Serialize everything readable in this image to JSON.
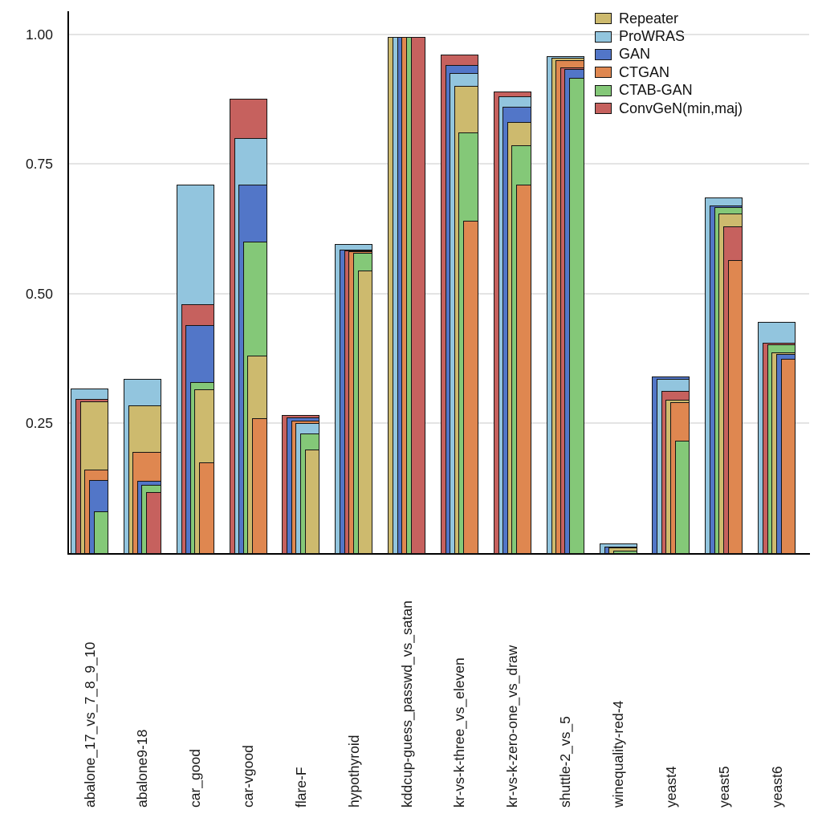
{
  "chart_data": {
    "type": "bar",
    "variant": "overlapping-nested-bars",
    "title": "",
    "xlabel": "",
    "ylabel": "",
    "ylim": [
      0,
      1.04
    ],
    "grid": true,
    "legend_position": "top-right",
    "yticks": [
      {
        "value": 0.25,
        "label": "0.25"
      },
      {
        "value": 0.5,
        "label": "0.50"
      },
      {
        "value": 0.75,
        "label": "0.75"
      },
      {
        "value": 1.0,
        "label": "1.00"
      }
    ],
    "categories": [
      "abalone_17_vs_7_8_9_10",
      "abalone9-18",
      "car_good",
      "car-vgood",
      "flare-F",
      "hypothyroid",
      "kddcup-guess_passwd_vs_satan",
      "kr-vs-k-three_vs_eleven",
      "kr-vs-k-zero-one_vs_draw",
      "shuttle-2_vs_5",
      "winequality-red-4",
      "yeast4",
      "yeast5",
      "yeast6"
    ],
    "series": [
      {
        "name": "Repeater",
        "color": "#cdba6e",
        "values": [
          0.293,
          0.285,
          0.315,
          0.38,
          0.2,
          0.545,
          0.995,
          0.9,
          0.83,
          0.954,
          0.011,
          0.295,
          0.655,
          0.386
        ]
      },
      {
        "name": "ProWRAS",
        "color": "#92c5de",
        "values": [
          0.317,
          0.335,
          0.71,
          0.8,
          0.25,
          0.595,
          0.995,
          0.925,
          0.88,
          0.958,
          0.019,
          0.336,
          0.685,
          0.445
        ]
      },
      {
        "name": "GAN",
        "color": "#5276c8",
        "values": [
          0.141,
          0.139,
          0.44,
          0.71,
          0.261,
          0.585,
          0.995,
          0.94,
          0.86,
          0.932,
          0.012,
          0.341,
          0.67,
          0.384
        ]
      },
      {
        "name": "CTGAN",
        "color": "#df8750",
        "values": [
          0.161,
          0.195,
          0.175,
          0.26,
          0.255,
          0.581,
          0.995,
          0.64,
          0.71,
          0.95,
          0.0,
          0.291,
          0.565,
          0.374
        ]
      },
      {
        "name": "CTAB-GAN",
        "color": "#84c878",
        "values": [
          0.08,
          0.132,
          0.33,
          0.6,
          0.23,
          0.579,
          0.995,
          0.81,
          0.785,
          0.915,
          0.004,
          0.217,
          0.666,
          0.402
        ]
      },
      {
        "name": "ConvGeN(min,maj)",
        "color": "#c6615e",
        "values": [
          0.297,
          0.117,
          0.48,
          0.875,
          0.266,
          0.583,
          0.995,
          0.96,
          0.89,
          0.936,
          0.0,
          0.313,
          0.63,
          0.405
        ]
      }
    ]
  }
}
